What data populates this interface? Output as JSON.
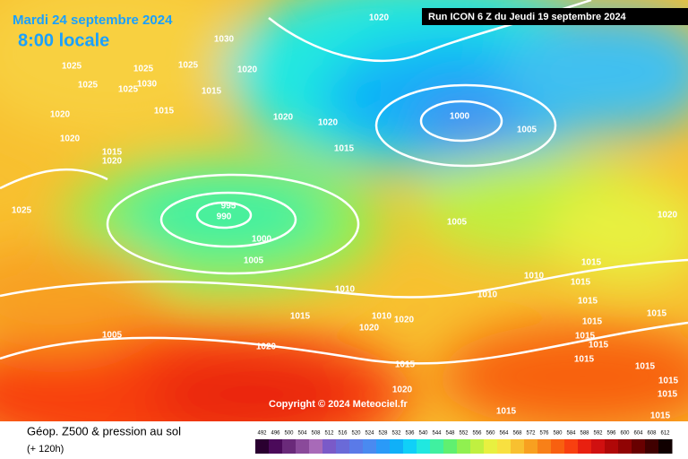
{
  "header": {
    "date": "Mardi 24 septembre 2024",
    "time": "8:00 locale",
    "run": "Run ICON 6 Z du Jeudi 19 septembre 2024",
    "copyright": "Copyright © 2024 Meteociel.fr"
  },
  "footer": {
    "title": "Géop. Z500 & pression au sol",
    "lead": "(+ 120h)"
  },
  "colorbar": {
    "labels": [
      492,
      496,
      500,
      504,
      508,
      512,
      516,
      520,
      524,
      528,
      532,
      536,
      540,
      544,
      548,
      552,
      556,
      560,
      564,
      568,
      572,
      576,
      580,
      584,
      588,
      592,
      596,
      600,
      604,
      608,
      612
    ],
    "colors": [
      "#2a0030",
      "#4b0a5a",
      "#6a2a7a",
      "#8a4a9a",
      "#a86ab8",
      "#7a5ac8",
      "#6a6ad8",
      "#5a7ae8",
      "#4a8af0",
      "#2a9af8",
      "#10b0f8",
      "#10d0f8",
      "#20e8e0",
      "#40f0a0",
      "#60f070",
      "#90f050",
      "#c0f040",
      "#e8f040",
      "#f8e040",
      "#f8c030",
      "#f8a020",
      "#f88018",
      "#f86010",
      "#f84010",
      "#e82010",
      "#d01010",
      "#b00808",
      "#900404",
      "#680000",
      "#400000",
      "#100000"
    ]
  },
  "isobars": [
    1020,
    1030,
    1025,
    1025,
    1025,
    1020,
    1025,
    1030,
    1025,
    1015,
    1015,
    1020,
    1020,
    1020,
    1000,
    1005,
    1020,
    1015,
    1020,
    1015,
    995,
    990,
    1025,
    1000,
    1005,
    1020,
    1005,
    1015,
    1010,
    1015,
    1010,
    1010,
    1015,
    1015,
    1010,
    1020,
    1020,
    1015,
    1015,
    1005,
    1015,
    1015,
    1020,
    1015,
    1015,
    1015,
    1015,
    1020,
    1015,
    1015,
    1015
  ]
}
